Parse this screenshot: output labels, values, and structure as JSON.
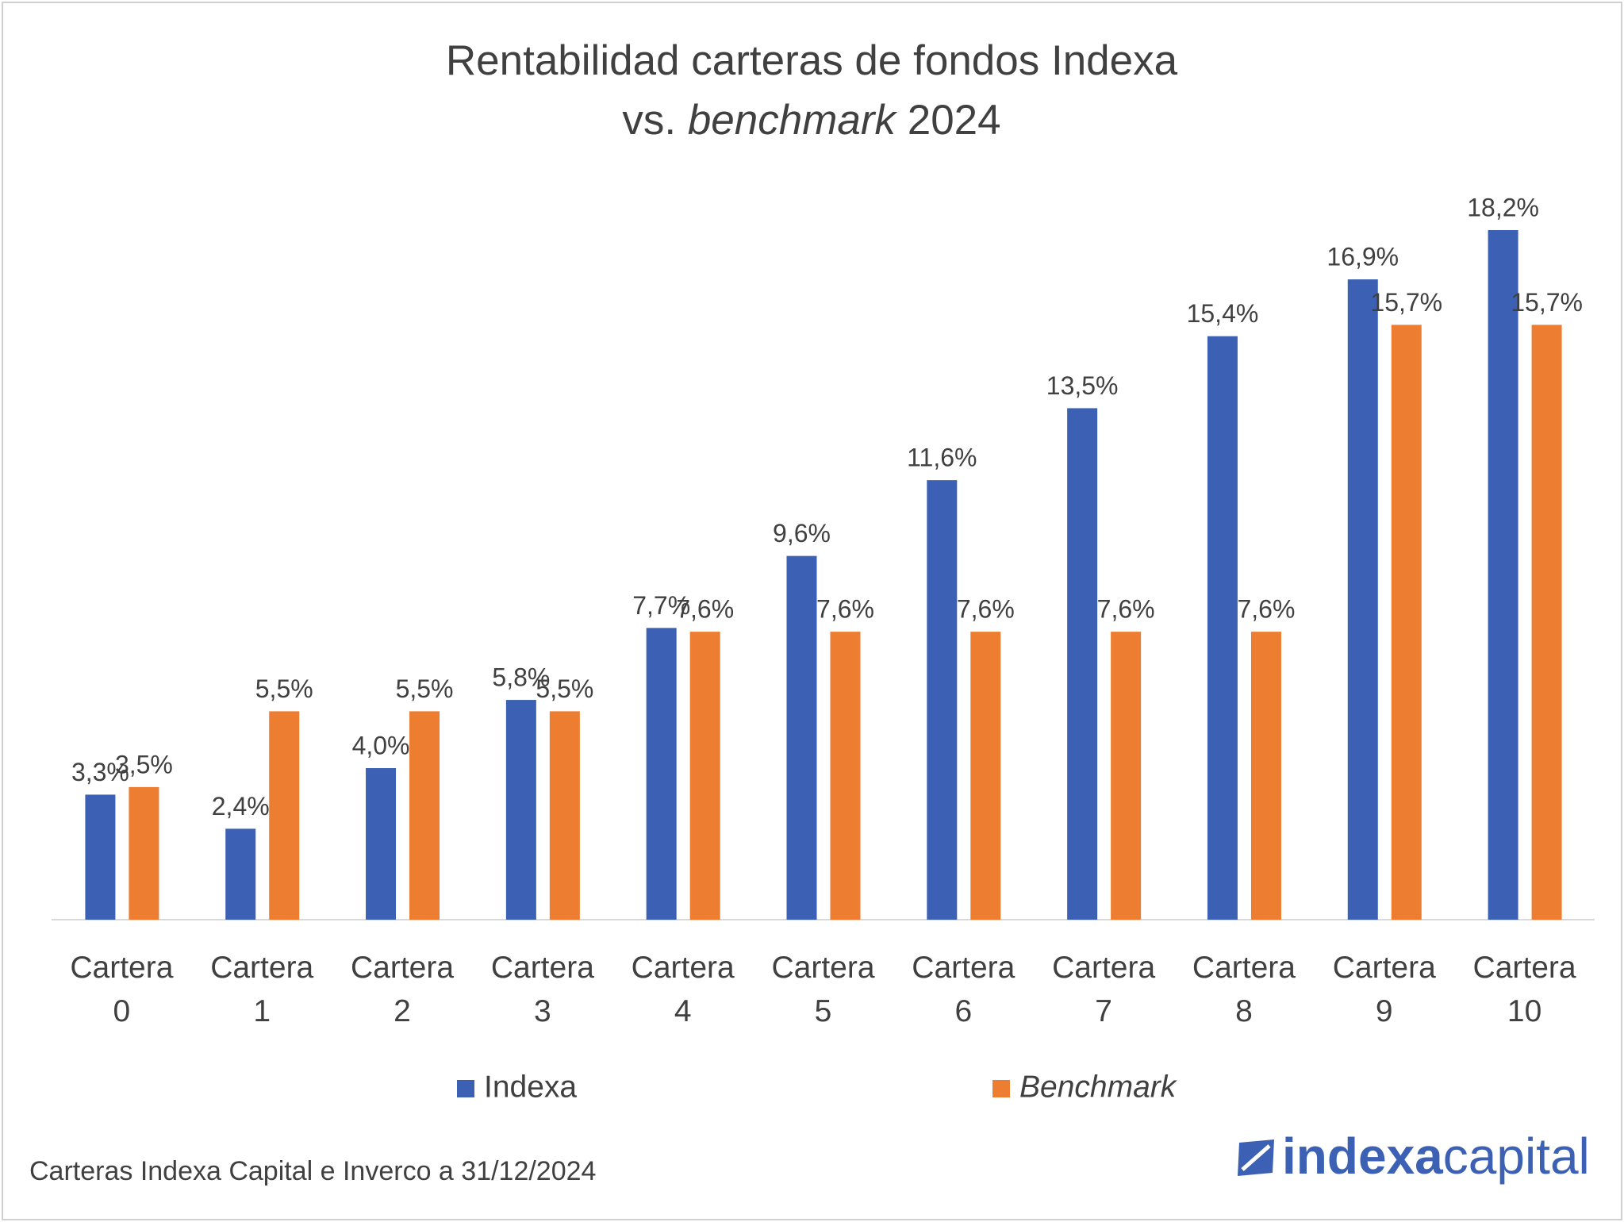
{
  "chart_data": {
    "type": "bar",
    "title": [
      "Rentabilidad carteras de fondos Indexa",
      "vs.",
      "benchmark",
      "2024"
    ],
    "categories": [
      "Cartera 0",
      "Cartera 1",
      "Cartera 2",
      "Cartera 3",
      "Cartera 4",
      "Cartera 5",
      "Cartera 6",
      "Cartera 7",
      "Cartera 8",
      "Cartera 9",
      "Cartera 10"
    ],
    "series": [
      {
        "name": "Indexa",
        "color": "#3c61b4",
        "values": [
          3.3,
          2.4,
          4.0,
          5.8,
          7.7,
          9.6,
          11.6,
          13.5,
          15.4,
          16.9,
          18.2
        ],
        "value_labels": [
          "3,3%",
          "2,4%",
          "4,0%",
          "5,8%",
          "7,7%",
          "9,6%",
          "11,6%",
          "13,5%",
          "15,4%",
          "16,9%",
          "18,2%"
        ]
      },
      {
        "name": "Benchmark",
        "color": "#ed7d31",
        "values": [
          3.5,
          5.5,
          5.5,
          5.5,
          7.6,
          7.6,
          7.6,
          7.6,
          7.6,
          15.7,
          15.7
        ],
        "value_labels": [
          "3,5%",
          "5,5%",
          "5,5%",
          "5,5%",
          "7,6%",
          "7,6%",
          "7,6%",
          "7,6%",
          "7,6%",
          "15,7%",
          "15,7%"
        ]
      }
    ],
    "source": "Carteras Indexa Capital e Inverco a 31/12/2024",
    "logo": [
      "indexa",
      "capital"
    ]
  }
}
